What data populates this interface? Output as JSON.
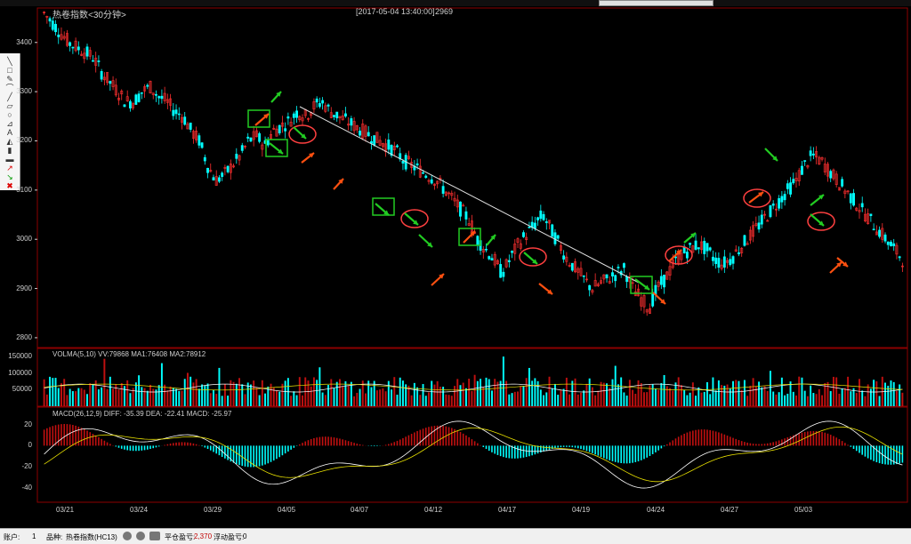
{
  "chart": {
    "title": "热卷指数<30分钟>",
    "datetime": "[2017-05-04 13:40:00]",
    "price": "2969"
  },
  "price_axis": [
    "3400",
    "3300",
    "3200",
    "3100",
    "3000",
    "2900",
    "2800"
  ],
  "volume": {
    "title": "VOLMA(5,10)  VV:79868 MA1:76408 MA2:78912",
    "axis": [
      "150000",
      "100000",
      "50000"
    ]
  },
  "macd": {
    "title": "MACD(26,12,9)  DIFF: -35.39 DEA: -22.41 MACD: -25.97",
    "axis": [
      "20",
      "0",
      "-20",
      "-40"
    ]
  },
  "dates": [
    "03/21",
    "03/24",
    "03/29",
    "04/05",
    "04/07",
    "04/12",
    "04/17",
    "04/19",
    "04/24",
    "04/27",
    "05/03"
  ],
  "toolbar": {
    "tools": [
      "line",
      "rect",
      "pencil",
      "arc",
      "segment",
      "lock",
      "ellipse",
      "fib",
      "text",
      "fill",
      "bar",
      "erase",
      "arrow-up",
      "arrow-dn",
      "clear"
    ]
  },
  "statusbar": {
    "account_label": "账户:",
    "account_value": "1",
    "product_label": "品种:",
    "product_value": "热卷指数(HC13)",
    "flat_label": "平仓盈亏:",
    "flat_value": "2,370",
    "float_label": "浮动盈亏:",
    "float_value": "0"
  },
  "colors": {
    "up": "#ff3030",
    "down": "#00ffff",
    "grid": "#8b0000",
    "arrow_up": "#ff5010",
    "arrow_green": "#22cc22"
  },
  "chart_data": {
    "type": "candlestick",
    "price_ylim": [
      2780,
      3470
    ],
    "trendline": [
      [
        3290,
        0.33
      ],
      [
        2920,
        0.73
      ]
    ],
    "close": [
      3460,
      3440,
      3420,
      3400,
      3390,
      3380,
      3370,
      3340,
      3320,
      3300,
      3280,
      3280,
      3300,
      3310,
      3290,
      3280,
      3260,
      3250,
      3220,
      3200,
      3150,
      3120,
      3130,
      3150,
      3170,
      3200,
      3210,
      3190,
      3220,
      3230,
      3240,
      3260,
      3250,
      3270,
      3280,
      3260,
      3250,
      3240,
      3230,
      3220,
      3210,
      3200,
      3190,
      3180,
      3160,
      3150,
      3140,
      3130,
      3120,
      3100,
      3080,
      3060,
      3040,
      3000,
      2980,
      2960,
      2930,
      2960,
      2990,
      3010,
      3030,
      3050,
      3020,
      2990,
      2960,
      2940,
      2920,
      2900,
      2910,
      2920,
      2930,
      2940,
      2900,
      2880,
      2860,
      2900,
      2920,
      2950,
      2970,
      2980,
      2990,
      2980,
      2960,
      2950,
      2960,
      2980,
      3000,
      3020,
      3040,
      3060,
      3080,
      3100,
      3120,
      3150,
      3170,
      3160,
      3140,
      3120,
      3100,
      3080,
      3060,
      3040,
      3020,
      3000,
      2980,
      2960
    ]
  }
}
